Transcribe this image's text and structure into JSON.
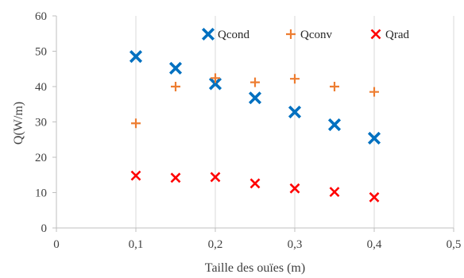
{
  "chart_data": {
    "type": "scatter",
    "title": "",
    "xlabel": "Taille  des ouïes (m)",
    "ylabel": "Q(W/m)",
    "xlim": [
      0,
      0.5
    ],
    "ylim": [
      0,
      60
    ],
    "x_ticks": [
      0,
      0.1,
      0.2,
      0.3,
      0.4,
      0.5
    ],
    "x_tick_labels": [
      "0",
      "0,1",
      "0,2",
      "0,3",
      "0,4",
      "0,5"
    ],
    "y_ticks": [
      0,
      10,
      20,
      30,
      40,
      50,
      60
    ],
    "y_tick_labels": [
      "0",
      "10",
      "20",
      "30",
      "40",
      "50",
      "60"
    ],
    "grid": "vertical",
    "legend_position": "top-right",
    "series": [
      {
        "name": "Qcond",
        "marker": "bold-x",
        "color": "#0070c0",
        "x": [
          0.1,
          0.15,
          0.2,
          0.25,
          0.3,
          0.35,
          0.4
        ],
        "y": [
          48.5,
          45.2,
          40.8,
          36.8,
          32.8,
          29.2,
          25.4
        ]
      },
      {
        "name": "Qconv",
        "marker": "plus",
        "color": "#ed7d31",
        "x": [
          0.1,
          0.15,
          0.2,
          0.25,
          0.3,
          0.35,
          0.4
        ],
        "y": [
          29.6,
          40.0,
          42.4,
          41.2,
          42.2,
          40.0,
          38.5
        ]
      },
      {
        "name": "Qrad",
        "marker": "x",
        "color": "#ff0000",
        "x": [
          0.1,
          0.15,
          0.2,
          0.25,
          0.3,
          0.35,
          0.4
        ],
        "y": [
          14.8,
          14.2,
          14.4,
          12.6,
          11.2,
          10.2,
          8.7
        ]
      }
    ]
  }
}
